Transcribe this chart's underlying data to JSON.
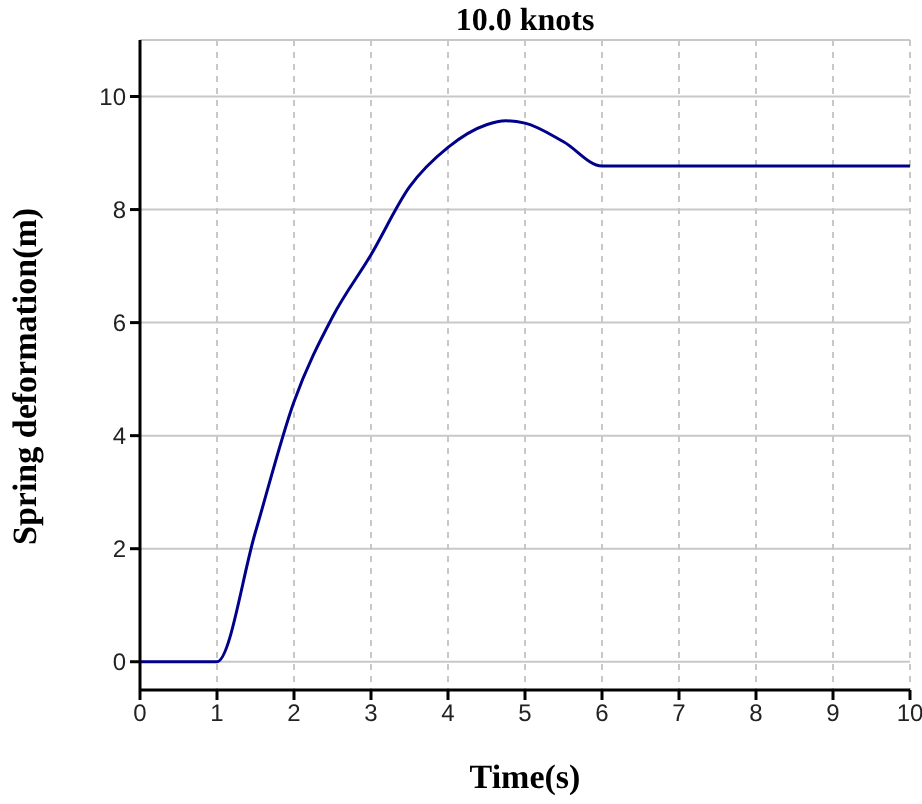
{
  "chart_data": {
    "type": "line",
    "title": "10.0 knots",
    "xlabel": "Time(s)",
    "ylabel": "Spring deformation(m)",
    "x": [
      0,
      1,
      1.5,
      2,
      2.5,
      3,
      3.5,
      4,
      4.5,
      4.75,
      5,
      5.5,
      6,
      10
    ],
    "series": [
      {
        "color": "#00008b",
        "values": [
          0,
          0,
          2.3,
          4.6,
          6.1,
          7.2,
          8.4,
          9.1,
          9.5,
          9.57,
          9.53,
          9.2,
          8.77,
          8.77
        ]
      }
    ],
    "xlim": [
      0,
      10
    ],
    "xticks": [
      0,
      1,
      2,
      3,
      4,
      5,
      6,
      7,
      8,
      9,
      10
    ],
    "ylim": [
      -0.5,
      11
    ],
    "yticks": [
      0,
      2,
      4,
      6,
      8,
      10
    ],
    "grid": true,
    "marker": "none",
    "line_style": "solid"
  }
}
